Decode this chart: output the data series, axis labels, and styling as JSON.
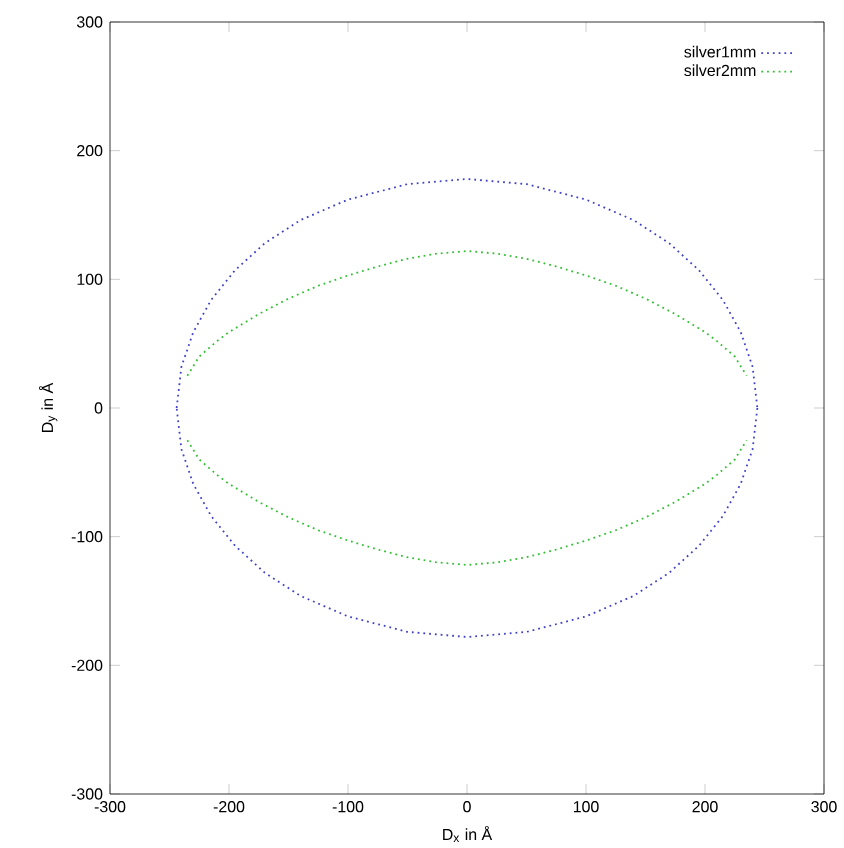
{
  "chart_data": {
    "type": "line",
    "xlabel": "D$_{x}$ in Å",
    "ylabel": "D$_{y}$ in Å",
    "xlim": [
      -300,
      300
    ],
    "ylim": [
      -300,
      300
    ],
    "xticks": [
      -300,
      -200,
      -100,
      0,
      100,
      200,
      300
    ],
    "yticks": [
      -300,
      -200,
      -100,
      0,
      100,
      200,
      300
    ],
    "legend": "top right",
    "grid": false,
    "line_style": "dotted",
    "marker": "none",
    "series": [
      {
        "name": "silver1mm",
        "color": "#4040c8",
        "x": [
          -244,
          -240,
          -230,
          -215,
          -195,
          -170,
          -140,
          -100,
          -50,
          0,
          50,
          100,
          140,
          170,
          195,
          215,
          230,
          240,
          244,
          null,
          244,
          240,
          230,
          215,
          195,
          170,
          140,
          100,
          50,
          0,
          -50,
          -100,
          -140,
          -170,
          -195,
          -215,
          -230,
          -240,
          -244
        ],
        "values": [
          0,
          32,
          59,
          84,
          107,
          128,
          146,
          162,
          174,
          178,
          174,
          162,
          146,
          128,
          107,
          84,
          59,
          32,
          0,
          null,
          0,
          -32,
          -59,
          -84,
          -107,
          -128,
          -146,
          -162,
          -174,
          -178,
          -174,
          -162,
          -146,
          -128,
          -107,
          -84,
          -59,
          -32,
          0
        ]
      },
      {
        "name": "silver2mm",
        "color": "#30c030",
        "x": [
          -235,
          -225,
          -210,
          -200,
          -175,
          -150,
          -125,
          -100,
          -75,
          -50,
          -25,
          0,
          25,
          50,
          75,
          100,
          125,
          150,
          175,
          200,
          210,
          225,
          235,
          null,
          -235,
          -225,
          -210,
          -200,
          -175,
          -150,
          -125,
          -100,
          -75,
          -50,
          -25,
          0,
          25,
          50,
          75,
          100,
          125,
          150,
          175,
          200,
          210,
          225,
          235
        ],
        "values": [
          25,
          40,
          52,
          59,
          73,
          85,
          95,
          103,
          110,
          116,
          120,
          122,
          120,
          116,
          110,
          103,
          95,
          85,
          73,
          59,
          52,
          40,
          25,
          null,
          -25,
          -40,
          -52,
          -59,
          -73,
          -85,
          -95,
          -103,
          -110,
          -116,
          -120,
          -122,
          -120,
          -116,
          -110,
          -103,
          -95,
          -85,
          -73,
          -59,
          -52,
          -40,
          -25
        ]
      }
    ]
  }
}
